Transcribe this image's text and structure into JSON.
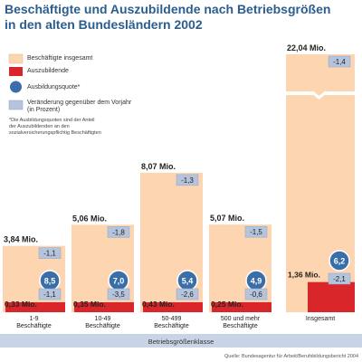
{
  "title": {
    "line1": "Beschäftigte und Auszubildende nach Betriebsgrößen",
    "line2": "in den alten Bundesländern 2002"
  },
  "legend": {
    "items": [
      {
        "label": "Beschäftigte insgesamt",
        "color": "#fdd5b1",
        "shape": "rect"
      },
      {
        "label": "Auszubildende",
        "color": "#d9262b",
        "shape": "rect"
      },
      {
        "label": "Ausbildungsquote*",
        "color": "#3a6ea8",
        "shape": "circle"
      },
      {
        "label": "Veränderung gegenüber dem Vorjahr",
        "label2": "(in Prozent)",
        "color": "#b5c4dd",
        "shape": "rect"
      }
    ],
    "footnote": [
      "*Die Ausbildungsquoten sind der Anteil",
      "der Auszubildenden an den",
      "sozialversicherungspflichtig Beschäftigten"
    ]
  },
  "chart_data": {
    "type": "bar",
    "categories": [
      "1-9 Beschäftigte",
      "10-49 Beschäftigte",
      "50-499 Beschäftigte",
      "500 und mehr Beschäftigte",
      "Insgesamt"
    ],
    "category_lines": [
      [
        "1-9",
        "Beschäftigte"
      ],
      [
        "10-49",
        "Beschäftigte"
      ],
      [
        "50-499",
        "Beschäftigte"
      ],
      [
        "500 und mehr",
        "Beschäftigte"
      ],
      [
        "Insgesamt"
      ]
    ],
    "series": [
      {
        "name": "Beschäftigte insgesamt",
        "unit": "Mio.",
        "values": [
          3.84,
          5.06,
          8.07,
          5.07,
          22.04
        ],
        "labels": [
          "3,84 Mio.",
          "5,06 Mio.",
          "8,07 Mio.",
          "5,07 Mio.",
          "22,04 Mio."
        ],
        "change_labels": [
          "-1,1",
          "-1,8",
          "-1,3",
          "-1,5",
          "-1,4"
        ],
        "color": "#fdd5b1"
      },
      {
        "name": "Auszubildende",
        "unit": "Mio.",
        "values": [
          0.33,
          0.35,
          0.43,
          0.25,
          1.36
        ],
        "labels": [
          "0,33 Mio.",
          "0,35 Mio.",
          "0,43 Mio.",
          "0,25 Mio.",
          "1,36 Mio."
        ],
        "change_labels": [
          "-1,1",
          "-3,5",
          "-2,6",
          "-0,6",
          "-2,1"
        ],
        "color": "#d9262b"
      },
      {
        "name": "Ausbildungsquote*",
        "values": [
          8.5,
          7.0,
          5.4,
          4.9,
          6.2
        ],
        "labels": [
          "8,5",
          "7,0",
          "5,4",
          "4,9",
          "6,2"
        ],
        "color": "#3a6ea8"
      }
    ],
    "axis_break_category": "Insgesamt",
    "xlabel": "Betriebsgrößenklasse",
    "ylabel": "",
    "grid": false
  },
  "source": "Quelle: Bundesagentur für Arbeit/Berufsbildungsbericht 2004",
  "colors": {
    "title": "#2b5d8e",
    "axis_band": "#c9d3e6",
    "change_box": "#b5c4dd",
    "change_box_border": "#8fa4c6"
  }
}
